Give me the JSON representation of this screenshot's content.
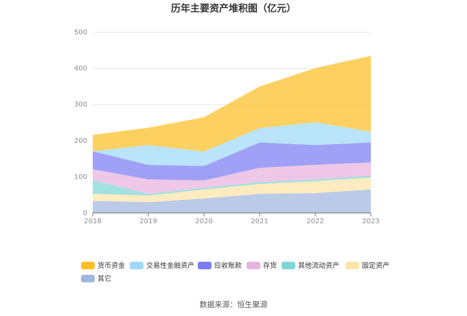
{
  "chart_data": {
    "type": "area",
    "stacked": true,
    "title": "历年主要资产堆积图（亿元）",
    "xlabel": "",
    "ylabel": "",
    "x": [
      "2018",
      "2019",
      "2020",
      "2021",
      "2022",
      "2023"
    ],
    "ylim": [
      0,
      500
    ],
    "yticks": [
      0,
      100,
      200,
      300,
      400,
      500
    ],
    "grid": true,
    "legend_position": "bottom-left",
    "series": [
      {
        "name": "货币资金",
        "color": "#fbbf24",
        "values": [
          45,
          48,
          95,
          115,
          150,
          210
        ]
      },
      {
        "name": "交易性金融资产",
        "color": "#9ed9f7",
        "values": [
          0,
          55,
          40,
          40,
          63,
          30
        ]
      },
      {
        "name": "应收账款",
        "color": "#7b7df2",
        "values": [
          50,
          40,
          40,
          70,
          55,
          55
        ]
      },
      {
        "name": "存货",
        "color": "#e9b3df",
        "values": [
          30,
          40,
          20,
          40,
          40,
          37
        ]
      },
      {
        "name": "其他流动资产",
        "color": "#80d6d4",
        "values": [
          38,
          5,
          5,
          5,
          5,
          5
        ]
      },
      {
        "name": "固定资产",
        "color": "#fde3a7",
        "values": [
          20,
          18,
          25,
          27,
          33,
          33
        ]
      },
      {
        "name": "其它",
        "color": "#9fb6df",
        "values": [
          33,
          30,
          40,
          53,
          55,
          65
        ]
      }
    ]
  },
  "source_text": "数据来源：恒生聚源"
}
